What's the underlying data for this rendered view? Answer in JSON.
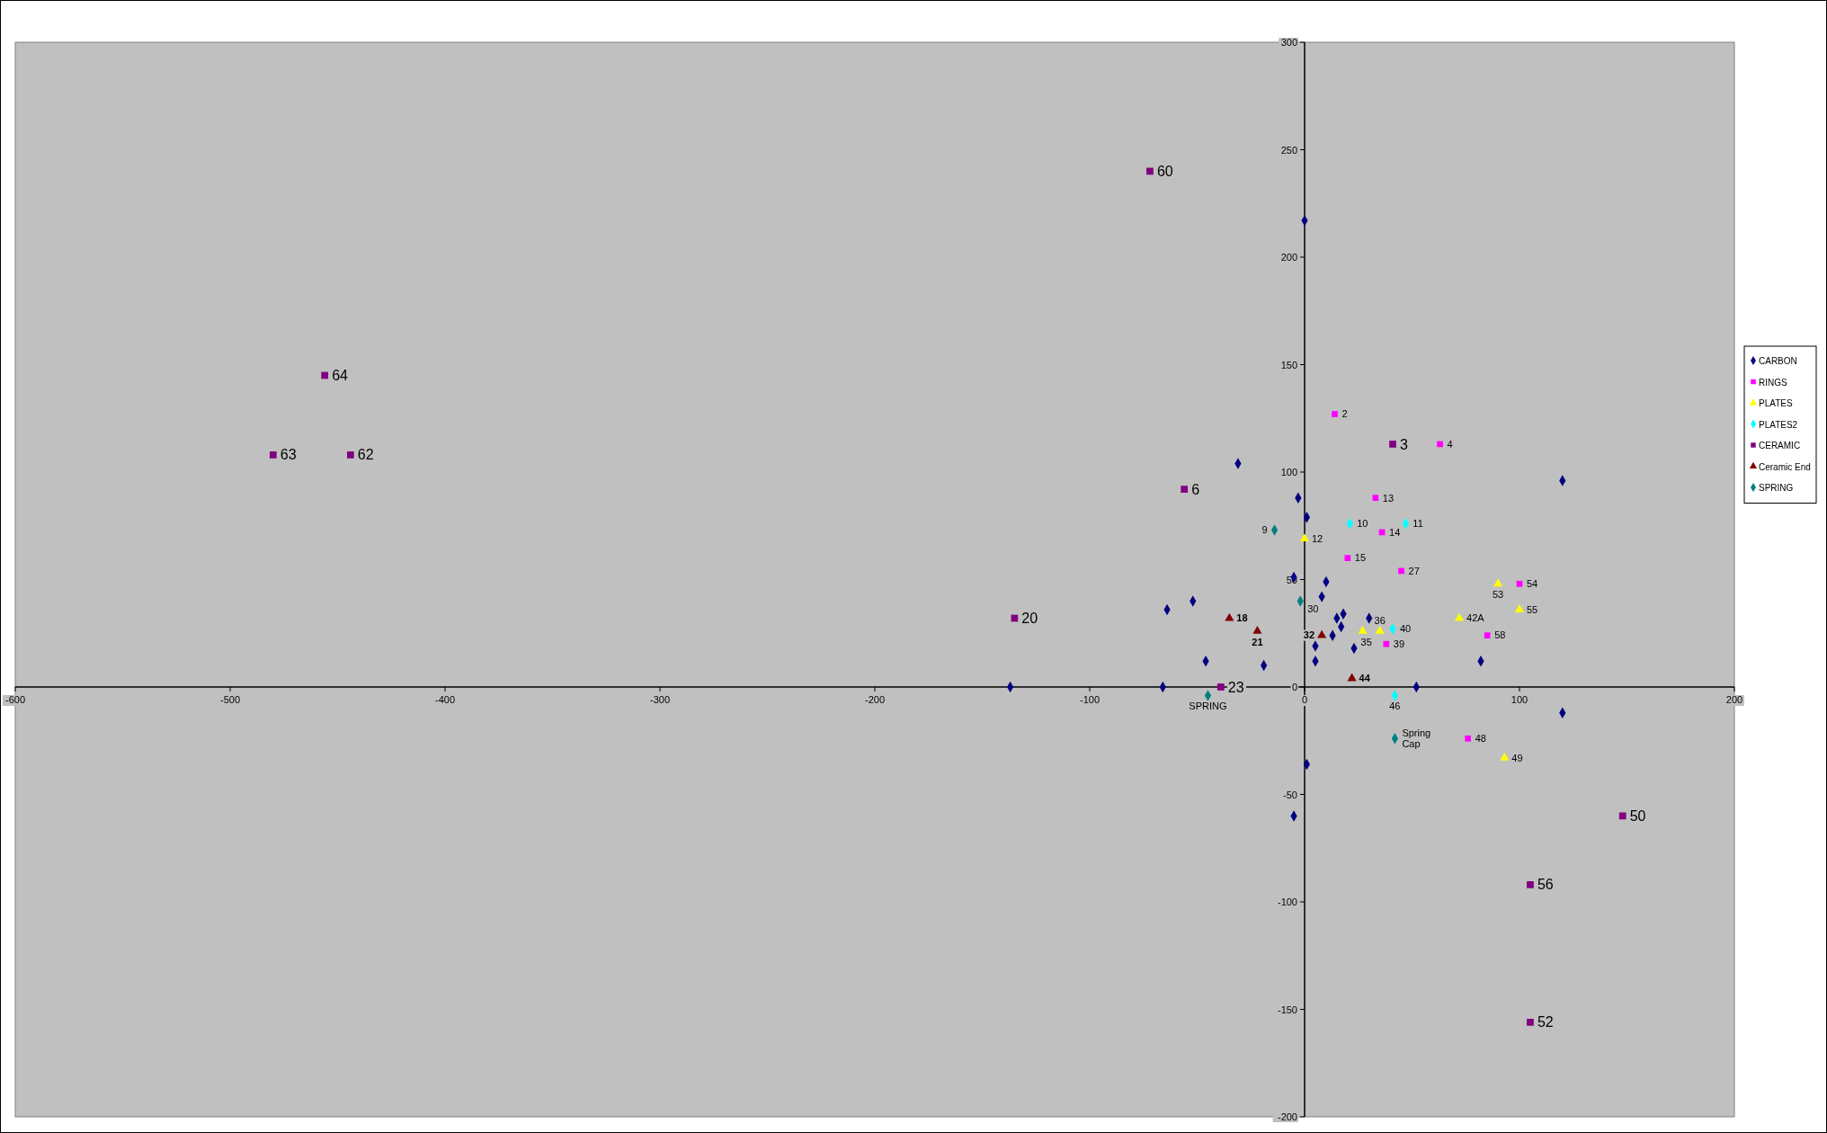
{
  "chart_data": {
    "type": "scatter",
    "xlim": [
      -600,
      200
    ],
    "ylim": [
      -200,
      300
    ],
    "xticks": [
      -600,
      -500,
      -400,
      -300,
      -200,
      -100,
      0,
      100,
      200
    ],
    "yticks": [
      -200,
      -150,
      -100,
      -50,
      0,
      50,
      100,
      150,
      200,
      250,
      300
    ],
    "legend": "right",
    "grid": false,
    "series": [
      {
        "name": "CARBON",
        "color": "#000080",
        "marker": "diamond",
        "x": [
          -137,
          -66,
          -64,
          -52,
          -46,
          -31,
          -19,
          -5,
          -5,
          -3,
          0,
          1,
          1,
          5,
          5,
          8,
          10,
          13,
          15,
          17,
          18,
          23,
          30,
          52,
          82,
          120,
          120
        ],
        "values": [
          0,
          0,
          36,
          40,
          12,
          104,
          10,
          51,
          -60,
          88,
          217,
          79,
          -36,
          19,
          12,
          42,
          49,
          24,
          32,
          28,
          34,
          18,
          32,
          0,
          12,
          96,
          -12
        ]
      },
      {
        "name": "RINGS",
        "color": "#ff00ff",
        "marker": "square",
        "x": [
          14,
          63,
          33,
          36,
          20,
          45,
          38,
          85,
          100,
          76
        ],
        "values": [
          127,
          113,
          88,
          72,
          60,
          54,
          20,
          24,
          48,
          -24
        ]
      },
      {
        "name": "PLATES",
        "color": "#ffff00",
        "marker": "triangle",
        "x": [
          0,
          27,
          35,
          72,
          90,
          100,
          93
        ],
        "values": [
          69,
          26,
          26,
          32,
          48,
          36,
          -33
        ]
      },
      {
        "name": "PLATES2",
        "color": "#00ffff",
        "marker": "diamond",
        "x": [
          21,
          47,
          41,
          42
        ],
        "values": [
          76,
          76,
          27,
          -4
        ]
      },
      {
        "name": "CERAMIC",
        "color": "#800080",
        "marker": "square",
        "x": [
          -56,
          -39,
          41,
          -72,
          -456,
          -480,
          -444,
          -135,
          148,
          105,
          105
        ],
        "values": [
          92,
          0,
          113,
          240,
          145,
          108,
          108,
          32,
          -60,
          -92,
          -156
        ]
      },
      {
        "name": "Ceramic End",
        "color": "#800000",
        "marker": "triangle",
        "x": [
          -35,
          -22,
          8,
          22
        ],
        "values": [
          32,
          26,
          24,
          4
        ]
      },
      {
        "name": "SPRING",
        "color": "#008080",
        "marker": "diamond",
        "x": [
          -14,
          -2,
          -45,
          42
        ],
        "values": [
          73,
          40,
          -4,
          -24
        ]
      }
    ],
    "annotations": [
      {
        "text": "2",
        "x": 14,
        "y": 127
      },
      {
        "text": "4",
        "x": 63,
        "y": 113
      },
      {
        "text": "13",
        "x": 33,
        "y": 88
      },
      {
        "text": "14",
        "x": 36,
        "y": 72
      },
      {
        "text": "15",
        "x": 20,
        "y": 60
      },
      {
        "text": "27",
        "x": 45,
        "y": 54
      },
      {
        "text": "39",
        "x": 38,
        "y": 20
      },
      {
        "text": "58",
        "x": 85,
        "y": 24
      },
      {
        "text": "54",
        "x": 100,
        "y": 48
      },
      {
        "text": "48",
        "x": 76,
        "y": -24
      },
      {
        "text": "12",
        "x": 0,
        "y": 69
      },
      {
        "text": "35",
        "x": 27,
        "y": 26
      },
      {
        "text": "36",
        "x": 35,
        "y": 26
      },
      {
        "text": "42A",
        "x": 72,
        "y": 32
      },
      {
        "text": "53",
        "x": 90,
        "y": 48
      },
      {
        "text": "55",
        "x": 100,
        "y": 36
      },
      {
        "text": "49",
        "x": 93,
        "y": -33
      },
      {
        "text": "10",
        "x": 21,
        "y": 76
      },
      {
        "text": "11",
        "x": 47,
        "y": 76
      },
      {
        "text": "40",
        "x": 41,
        "y": 27
      },
      {
        "text": "46",
        "x": 42,
        "y": -4
      },
      {
        "text": "6",
        "x": -56,
        "y": 92
      },
      {
        "text": "23",
        "x": -39,
        "y": 0
      },
      {
        "text": "3",
        "x": 41,
        "y": 113
      },
      {
        "text": "60",
        "x": -72,
        "y": 240
      },
      {
        "text": "64",
        "x": -456,
        "y": 145
      },
      {
        "text": "63",
        "x": -480,
        "y": 108
      },
      {
        "text": "62",
        "x": -444,
        "y": 108
      },
      {
        "text": "20",
        "x": -135,
        "y": 32
      },
      {
        "text": "50",
        "x": 148,
        "y": -60
      },
      {
        "text": "56",
        "x": 105,
        "y": -92
      },
      {
        "text": "52",
        "x": 105,
        "y": -156
      },
      {
        "text": "18",
        "x": -35,
        "y": 32
      },
      {
        "text": "21",
        "x": -22,
        "y": 26
      },
      {
        "text": "32",
        "x": 8,
        "y": 24
      },
      {
        "text": "44",
        "x": 22,
        "y": 4
      },
      {
        "text": "9",
        "x": -14,
        "y": 73
      },
      {
        "text": "30",
        "x": -2,
        "y": 40
      },
      {
        "text": "SPRING",
        "x": -45,
        "y": -4
      },
      {
        "text": "Spring\nCap",
        "x": 42,
        "y": -24
      }
    ]
  }
}
